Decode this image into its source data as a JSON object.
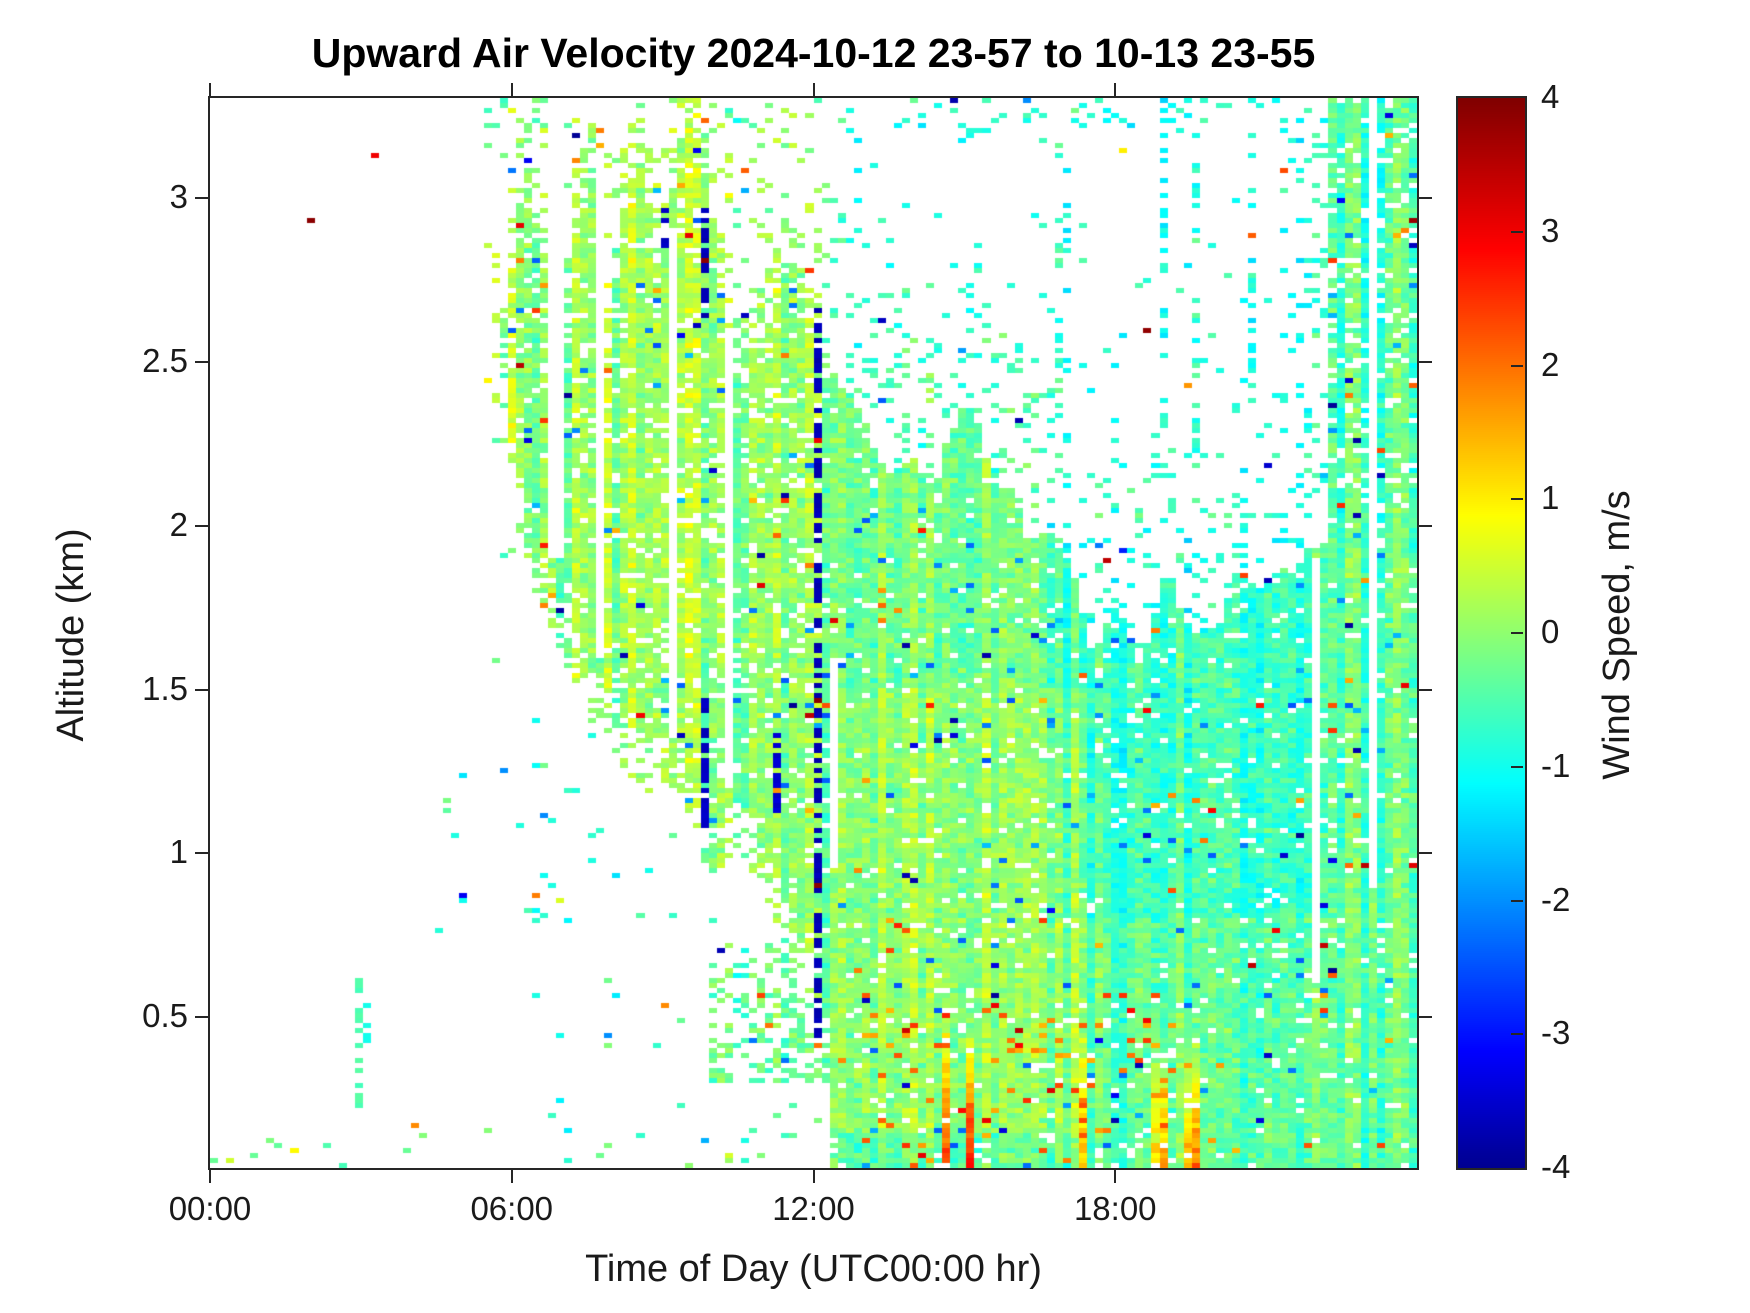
{
  "chart_data": {
    "type": "heatmap",
    "title": "Upward Air Velocity 2024-10-12 23-57 to 10-13 23-55",
    "xlabel": "Time of Day (UTC00:00 hr)",
    "ylabel": "Altitude (km)",
    "colorbar_label": "Wind Speed, m/s",
    "x_ticks": [
      {
        "hours": 0,
        "label": "00:00"
      },
      {
        "hours": 6,
        "label": "06:00"
      },
      {
        "hours": 12,
        "label": "12:00"
      },
      {
        "hours": 18,
        "label": "18:00"
      }
    ],
    "y_ticks": [
      {
        "km": 0.5,
        "label": "0.5"
      },
      {
        "km": 1,
        "label": "1"
      },
      {
        "km": 1.5,
        "label": "1.5"
      },
      {
        "km": 2,
        "label": "2"
      },
      {
        "km": 2.5,
        "label": "2.5"
      },
      {
        "km": 3,
        "label": "3"
      }
    ],
    "colorbar_ticks": [
      {
        "value": 4,
        "label": "4"
      },
      {
        "value": 3,
        "label": "3"
      },
      {
        "value": 2,
        "label": "2"
      },
      {
        "value": 1,
        "label": "1"
      },
      {
        "value": 0,
        "label": "0"
      },
      {
        "value": -1,
        "label": "-1"
      },
      {
        "value": -2,
        "label": "-2"
      },
      {
        "value": -3,
        "label": "-3"
      },
      {
        "value": -4,
        "label": "-4"
      }
    ],
    "x_range_hours": [
      0,
      23.92
    ],
    "y_range_km": [
      0.04,
      3.305
    ],
    "value_range_mps": [
      -4,
      4
    ],
    "axis_color": "#262626",
    "text_color": "#1a1a1a",
    "no_data_color": "#ffffff",
    "colormap": {
      "name": "jet",
      "anchors": [
        {
          "f": 0,
          "rgb": [
            0,
            0,
            143
          ]
        },
        {
          "f": 0.109,
          "rgb": [
            0,
            0,
            255
          ]
        },
        {
          "f": 0.36,
          "rgb": [
            0,
            255,
            255
          ]
        },
        {
          "f": 0.61,
          "rgb": [
            255,
            255,
            0
          ]
        },
        {
          "f": 0.86,
          "rgb": [
            255,
            0,
            0
          ]
        },
        {
          "f": 1,
          "rgb": [
            128,
            0,
            0
          ]
        }
      ]
    },
    "grid": {
      "nx": 150,
      "ny": 214
    },
    "seed": 7,
    "field": {
      "aloft_upper": [
        5.5,
        2.5,
        5.9,
        2.75,
        6.3,
        3.2,
        6.6,
        3.1,
        7.0,
        2.7,
        7.3,
        3.15,
        7.6,
        3.3,
        7.85,
        2.6,
        8.1,
        3.0,
        8.5,
        3.25,
        8.9,
        2.95,
        9.3,
        3.3,
        9.7,
        3.28,
        10.0,
        3.05,
        10.3,
        2.7,
        10.7,
        2.6,
        11.0,
        2.65,
        11.4,
        3.0,
        11.8,
        2.9,
        12.1,
        2.75,
        12.35,
        2.55
      ],
      "aloft_lower": [
        5.5,
        2.38,
        6.0,
        2.1,
        6.4,
        1.75,
        7.0,
        1.62,
        7.5,
        1.5,
        8.0,
        1.4,
        8.5,
        1.28,
        9.0,
        1.18,
        9.5,
        1.02,
        10.0,
        1.0,
        10.5,
        1.02,
        11.0,
        0.95,
        11.5,
        0.78,
        11.9,
        0.6,
        12.1,
        0.5,
        12.35,
        0.05
      ],
      "mass_upper": [
        12.25,
        2.55,
        13.0,
        2.42,
        13.5,
        2.28,
        14.0,
        2.32,
        14.5,
        2.18,
        15.0,
        2.28,
        15.5,
        2.12,
        16.0,
        2.2,
        16.5,
        1.95,
        17.0,
        1.85,
        17.5,
        1.72,
        18.0,
        1.82,
        18.5,
        1.62,
        19.0,
        1.75,
        19.5,
        1.68,
        20.0,
        1.82,
        20.5,
        1.72,
        21.0,
        1.95,
        21.5,
        1.85,
        22.0,
        1.9,
        22.28,
        2.0,
        23.92,
        2.0
      ],
      "zone_values": {
        "aloft": {
          "mean": -0.05,
          "col": 0.45
        },
        "mass": {
          "mean": -0.33,
          "col": 0.38
        },
        "tall": {
          "mean": -0.42,
          "col": 0.45
        },
        "cyan": {
          "mean": -0.85,
          "col": 0.3
        },
        "low": {
          "mean": -0.3,
          "col": 0.4
        },
        "lowmean": {
          "mean": -0.2,
          "col": 0.5
        },
        "dot": {
          "mean": -0.7,
          "col": 0.4
        },
        "edge": {
          "mean": -0.6,
          "col": 0.4
        }
      },
      "cell_noise": 0.55,
      "trends": [
        {
          "t0": 12.3,
          "t1": 17.5,
          "a0": 0.15,
          "a1": 1.5,
          "dv": 0.35
        },
        {
          "t0": 16.8,
          "t1": 22.3,
          "a0": 0.8,
          "a1": 2.0,
          "dv": -0.25
        },
        {
          "t0": 5.5,
          "t1": 12.35,
          "a0": 1.6,
          "a1": 3.3,
          "dv": 0.1
        },
        {
          "t0": 12.3,
          "t1": 16.5,
          "a0": 1.5,
          "a1": 2.5,
          "dv": 0.15
        }
      ],
      "updrafts": {
        "t0": 13.8,
        "t1": 19.7,
        "col_p": 0.26,
        "depth_min": 0.3,
        "depth_rand": 0.3,
        "boost_min": 1.1,
        "boost_rand": 1.6
      },
      "outliers": {
        "navy_p": 0.0045,
        "blue_p": 0.012,
        "orange_p": 0.005,
        "red_p": 0.0015,
        "lowband": {
          "t0": 13.0,
          "t1": 20.0,
          "a_max": 0.55,
          "orange_p": 0.055,
          "red_p": 0.008
        }
      },
      "special_columns": [
        {
          "t": 9.78,
          "a0": 2.62,
          "a1": 2.96,
          "v": -3.7,
          "dash": 0.3,
          "reds": [
            2.81
          ]
        },
        {
          "t": 9.78,
          "a0": 1.08,
          "a1": 1.5,
          "v": -3.6,
          "dash": 0.35,
          "reds": []
        },
        {
          "t": 12.07,
          "a0": 0.45,
          "a1": 2.66,
          "v": -3.7,
          "dash": 0.45,
          "reds": [
            0.9,
            1.46
          ]
        },
        {
          "t": 11.28,
          "a0": 1.13,
          "a1": 1.36,
          "v": -3.5,
          "dash": 0.3,
          "reds": []
        },
        {
          "t": 9.02,
          "a0": 2.86,
          "a1": 2.98,
          "v": -3.6,
          "dash": 0.3,
          "reds": []
        },
        {
          "t": 2.98,
          "a0": 0.2,
          "a1": 0.62,
          "v": -0.5,
          "dash": 0.45,
          "reds": []
        },
        {
          "t": 3.1,
          "a0": 0.33,
          "a1": 0.56,
          "v": -0.9,
          "dash": 0.5,
          "reds": []
        }
      ],
      "special_cells": [
        {
          "t": 2.02,
          "a": 2.93,
          "v": 3.9
        },
        {
          "t": 3.22,
          "a": 3.13,
          "v": 3.0
        },
        {
          "t": 5.96,
          "a": 3.09,
          "v": -2.2
        },
        {
          "t": 6.3,
          "a": 3.11,
          "v": -3.2
        },
        {
          "t": 7.8,
          "a": 3.2,
          "v": 1.9
        },
        {
          "t": 7.8,
          "a": 3.16,
          "v": 1.5
        },
        {
          "t": 6.42,
          "a": 0.87,
          "v": 1.9
        },
        {
          "t": 6.9,
          "a": 0.85,
          "v": 0.6
        },
        {
          "t": 5.82,
          "a": 1.26,
          "v": -2.0
        },
        {
          "t": 6.65,
          "a": 1.27,
          "v": -0.2
        },
        {
          "t": 5.0,
          "a": 0.85,
          "v": -1.0
        },
        {
          "t": 4.1,
          "a": 0.17,
          "v": 1.8
        },
        {
          "t": 1.6,
          "a": 0.1,
          "v": 0.9
        },
        {
          "t": 0.1,
          "a": 0.07,
          "v": -0.3
        },
        {
          "t": 9.0,
          "a": 0.54,
          "v": 1.8
        },
        {
          "t": 9.3,
          "a": 0.49,
          "v": -0.3
        },
        {
          "t": 10.6,
          "a": 2.64,
          "v": -3.6
        },
        {
          "t": 13.3,
          "a": 2.63,
          "v": -3.6
        },
        {
          "t": 13.02,
          "a": 0.55,
          "v": -3.6
        },
        {
          "t": 18.72,
          "a": 2.59,
          "v": 3.85
        },
        {
          "t": 18.08,
          "a": 1.92,
          "v": -2.9
        },
        {
          "t": 18.1,
          "a": 3.14,
          "v": 1.0
        },
        {
          "t": 19.48,
          "a": 2.43,
          "v": 1.7
        },
        {
          "t": 20.9,
          "a": 0.18,
          "v": -3.4
        },
        {
          "t": 23.88,
          "a": 2.93,
          "v": 3.8
        },
        {
          "t": 23.88,
          "a": 2.86,
          "v": -3.6
        }
      ],
      "gaps": [
        {
          "t0": 23.02,
          "t1": 23.2,
          "a0": 0.9,
          "a1": 3.31
        },
        {
          "t0": 6.8,
          "t1": 6.98,
          "a0": 1.9,
          "a1": 3.31
        },
        {
          "t0": 7.62,
          "t1": 7.78,
          "a0": 1.6,
          "a1": 3.31
        },
        {
          "t0": 9.1,
          "t1": 9.25,
          "a0": 1.35,
          "a1": 2.9
        },
        {
          "t0": 10.32,
          "t1": 10.45,
          "a0": 1.2,
          "a1": 2.6
        },
        {
          "t0": 21.95,
          "t1": 22.1,
          "a0": 0.6,
          "a1": 1.9
        },
        {
          "t0": 12.4,
          "t1": 12.55,
          "a0": 0.95,
          "a1": 1.6
        }
      ]
    }
  }
}
